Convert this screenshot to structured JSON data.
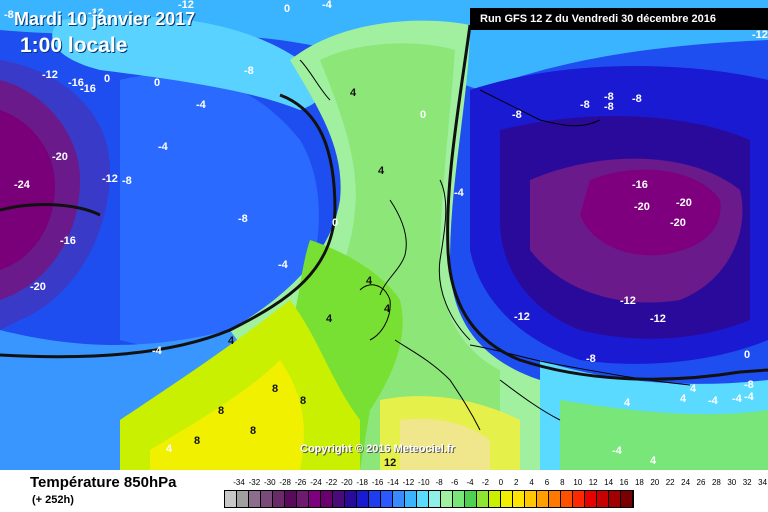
{
  "header": {
    "date": "Mardi 10 janvier 2017",
    "time": "1:00 locale",
    "run": "Run GFS 12 Z du Vendredi 30 décembre 2016"
  },
  "copyright": "Copyright © 2016 Meteociel.fr",
  "legend": {
    "field": "Température 850hPa",
    "lead": "(+ 252h)",
    "ticks": [
      "-34",
      "-32",
      "-30",
      "-28",
      "-26",
      "-24",
      "-22",
      "-20",
      "-18",
      "-16",
      "-14",
      "-12",
      "-10",
      "-8",
      "-6",
      "-4",
      "-2",
      "0",
      "2",
      "4",
      "6",
      "8",
      "10",
      "12",
      "14",
      "16",
      "18",
      "20",
      "22",
      "24",
      "26",
      "28",
      "30",
      "32",
      "34"
    ],
    "colors": [
      "#c8c8c8",
      "#a0a0a0",
      "#8c6e8c",
      "#7a4a7a",
      "#6a2a6a",
      "#5a0a5a",
      "#6e1a6e",
      "#7e007e",
      "#6a006e",
      "#4a0a7a",
      "#2a0a9a",
      "#1a1ad2",
      "#1e3cf0",
      "#2a5aff",
      "#3a8aff",
      "#3ab4ff",
      "#5adaff",
      "#8ef0e6",
      "#a0f0a0",
      "#78e678",
      "#50d050",
      "#8ce632",
      "#c8f000",
      "#f0f000",
      "#ffe600",
      "#ffc800",
      "#ffa000",
      "#ff7800",
      "#ff5000",
      "#ff2800",
      "#e60000",
      "#c80000",
      "#a00000",
      "#780000"
    ]
  },
  "isotherm_labels": [
    "-8",
    "-12",
    "-12",
    "0",
    "-4",
    "-12",
    "-16",
    "-16",
    "0",
    "-4",
    "0",
    "-4",
    "-20",
    "-12",
    "-8",
    "-24",
    "-16",
    "-20",
    "-8",
    "-4",
    "-4",
    "0",
    "4",
    "4",
    "0",
    "-8",
    "-8",
    "-8",
    "-8",
    "-8",
    "-8",
    "-12",
    "-12",
    "-16",
    "-20",
    "-20",
    "-20",
    "-12",
    "-12",
    "-8",
    "-4",
    "4",
    "4",
    "4",
    "4",
    "8",
    "8",
    "8",
    "8",
    "8",
    "4",
    "4",
    "4",
    "4",
    "0",
    "-8",
    "-4",
    "-4",
    "12",
    "-4",
    "-4",
    "4"
  ]
}
